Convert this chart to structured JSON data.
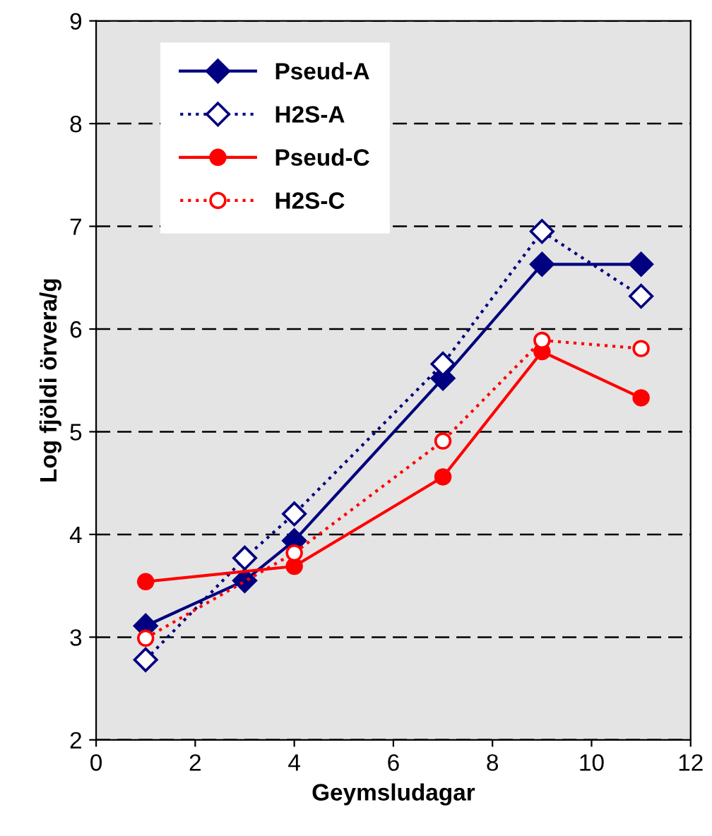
{
  "chart_data": {
    "type": "line",
    "xlabel": "Geymsludagar",
    "ylabel": "Log fjöldi örvera/g",
    "x": [
      1,
      3,
      4,
      7,
      9,
      11
    ],
    "series": [
      {
        "name": "Pseud-A",
        "color": "#000080",
        "marker": "diamond",
        "line_style": "solid",
        "values": [
          3.11,
          3.55,
          3.94,
          5.52,
          6.63,
          6.63
        ]
      },
      {
        "name": "H2S-A",
        "color": "#000080",
        "marker": "diamond",
        "line_style": "dotted",
        "values": [
          2.78,
          3.77,
          4.2,
          5.66,
          6.95,
          6.32
        ]
      },
      {
        "name": "Pseud-C",
        "color": "#ff0000",
        "marker": "circle",
        "line_style": "solid",
        "x": [
          1,
          4,
          7,
          9,
          11
        ],
        "values": [
          3.54,
          3.69,
          4.56,
          5.78,
          5.33
        ]
      },
      {
        "name": "H2S-C",
        "color": "#ff0000",
        "marker": "circle",
        "line_style": "dotted",
        "x": [
          1,
          4,
          7,
          9,
          11
        ],
        "values": [
          2.99,
          3.82,
          4.91,
          5.89,
          5.81
        ]
      }
    ],
    "xlim": [
      0,
      12
    ],
    "xticks": [
      0,
      2,
      4,
      6,
      8,
      10,
      12
    ],
    "ylim": [
      2,
      9
    ],
    "yticks": [
      2,
      3,
      4,
      5,
      6,
      7,
      8,
      9
    ],
    "grid": "y",
    "legend": "top left"
  }
}
